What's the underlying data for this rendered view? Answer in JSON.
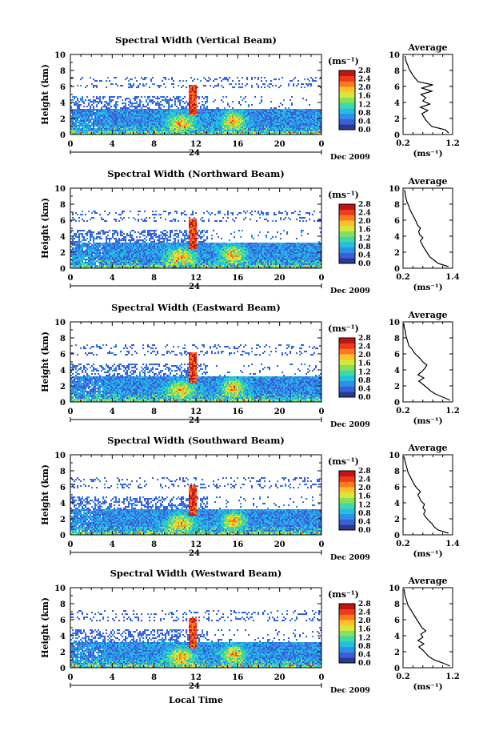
{
  "figure": {
    "bottom_xlabel": "Local Time",
    "date_label": "Dec 2009",
    "day_label": "24",
    "ylabel": "Height (km)",
    "colorbar_unit": "(ms⁻¹)",
    "profile_title": "Average",
    "profile_xlabel": "(ms⁻¹)"
  },
  "colorbar": {
    "ticks": [
      "2.8",
      "2.4",
      "2.0",
      "1.6",
      "1.2",
      "0.8",
      "0.4",
      "0.0"
    ],
    "range": [
      0.0,
      2.8
    ],
    "colors": [
      "#2a3b8f",
      "#3a5fd9",
      "#2f8fe8",
      "#21c0e0",
      "#3fd9a8",
      "#86e05a",
      "#d6e83a",
      "#ffc22a",
      "#ff7a1f",
      "#f03a1a",
      "#c01515"
    ]
  },
  "chart_data": [
    {
      "type": "heatmap",
      "title": "Spectral Width (Vertical Beam)",
      "xlabel": "Local Time",
      "ylabel": "Height (km)",
      "xlim": [
        0,
        24
      ],
      "ylim": [
        0,
        10
      ],
      "xticks": [
        "0",
        "4",
        "8",
        "12",
        "16",
        "20",
        "0"
      ],
      "yticks": [
        "0",
        "2",
        "4",
        "6",
        "8",
        "10"
      ],
      "profile": {
        "type": "line",
        "title": "Average",
        "xlabel": "(ms⁻¹)",
        "xlim": [
          0.2,
          1.2
        ],
        "xticks": [
          "0.2",
          "1.2"
        ],
        "ylim": [
          0,
          10
        ],
        "x": [
          1.12,
          1.05,
          0.78,
          0.72,
          0.66,
          0.62,
          0.58,
          0.7,
          0.55,
          0.74,
          0.6,
          0.66,
          0.56,
          0.78,
          0.58,
          0.8,
          0.5,
          0.45,
          0.4,
          0.36,
          0.32,
          0.3,
          0.27,
          0.25,
          0.24
        ],
        "y": [
          0.2,
          0.6,
          1.0,
          1.4,
          1.8,
          2.2,
          2.6,
          3.0,
          3.4,
          3.8,
          4.2,
          4.6,
          5.0,
          5.4,
          5.8,
          6.2,
          6.6,
          7.0,
          7.4,
          7.8,
          8.2,
          8.6,
          9.0,
          9.4,
          9.8
        ]
      }
    },
    {
      "type": "heatmap",
      "title": "Spectral Width (Northward Beam)",
      "xlabel": "Local Time",
      "ylabel": "Height (km)",
      "xlim": [
        0,
        24
      ],
      "ylim": [
        0,
        10
      ],
      "xticks": [
        "0",
        "4",
        "8",
        "12",
        "16",
        "20",
        "0"
      ],
      "yticks": [
        "0",
        "2",
        "4",
        "6",
        "8",
        "10"
      ],
      "profile": {
        "type": "line",
        "title": "Average",
        "xlabel": "(ms⁻¹)",
        "xlim": [
          0.2,
          1.4
        ],
        "xticks": [
          "0.2",
          "1.4"
        ],
        "ylim": [
          0,
          10
        ],
        "x": [
          1.3,
          1.05,
          0.95,
          0.85,
          0.8,
          0.75,
          0.7,
          0.66,
          0.62,
          0.68,
          0.6,
          0.58,
          0.62,
          0.55,
          0.52,
          0.48,
          0.44,
          0.4,
          0.36,
          0.34,
          0.3,
          0.28,
          0.26,
          0.25,
          0.24
        ],
        "y": [
          0.2,
          0.6,
          1.0,
          1.4,
          1.8,
          2.2,
          2.6,
          3.0,
          3.4,
          3.8,
          4.2,
          4.6,
          5.0,
          5.4,
          5.8,
          6.2,
          6.6,
          7.0,
          7.4,
          7.8,
          8.2,
          8.6,
          9.0,
          9.4,
          9.8
        ]
      }
    },
    {
      "type": "heatmap",
      "title": "Spectral Width (Eastward Beam)",
      "xlabel": "Local Time",
      "ylabel": "Height (km)",
      "xlim": [
        0,
        24
      ],
      "ylim": [
        0,
        10
      ],
      "xticks": [
        "0",
        "4",
        "8",
        "12",
        "16",
        "20",
        "0"
      ],
      "yticks": [
        "0",
        "2",
        "4",
        "6",
        "8",
        "10"
      ],
      "profile": {
        "type": "line",
        "title": "Average",
        "xlabel": "(ms⁻¹)",
        "xlim": [
          0.2,
          1.2
        ],
        "xticks": [
          "0.2",
          "1.2"
        ],
        "ylim": [
          0,
          10
        ],
        "x": [
          1.15,
          1.0,
          0.85,
          0.75,
          0.68,
          0.6,
          0.52,
          0.62,
          0.5,
          0.58,
          0.64,
          0.68,
          0.6,
          0.55,
          0.48,
          0.42,
          0.38,
          0.32,
          0.3,
          0.28,
          0.26,
          0.25,
          0.24,
          0.22,
          0.22
        ],
        "y": [
          0.2,
          0.6,
          1.0,
          1.4,
          1.8,
          2.2,
          2.6,
          3.0,
          3.4,
          3.8,
          4.2,
          4.6,
          5.0,
          5.4,
          5.8,
          6.2,
          6.6,
          7.0,
          7.4,
          7.8,
          8.2,
          8.6,
          9.0,
          9.4,
          9.8
        ]
      }
    },
    {
      "type": "heatmap",
      "title": "Spectral Width (Southward Beam)",
      "xlabel": "Local Time",
      "ylabel": "Height (km)",
      "xlim": [
        0,
        24
      ],
      "ylim": [
        0,
        10
      ],
      "xticks": [
        "0",
        "4",
        "8",
        "12",
        "16",
        "20",
        "0"
      ],
      "yticks": [
        "0",
        "2",
        "4",
        "6",
        "8",
        "10"
      ],
      "profile": {
        "type": "line",
        "title": "Average",
        "xlabel": "(ms⁻¹)",
        "xlim": [
          0.2,
          1.4
        ],
        "xticks": [
          "0.2",
          "1.4"
        ],
        "ylim": [
          0,
          10
        ],
        "x": [
          1.3,
          1.05,
          0.95,
          0.9,
          0.82,
          0.75,
          0.7,
          0.74,
          0.68,
          0.72,
          0.64,
          0.6,
          0.56,
          0.62,
          0.54,
          0.48,
          0.44,
          0.4,
          0.36,
          0.32,
          0.3,
          0.28,
          0.26,
          0.24,
          0.22
        ],
        "y": [
          0.2,
          0.6,
          1.0,
          1.4,
          1.8,
          2.2,
          2.6,
          3.0,
          3.4,
          3.8,
          4.2,
          4.6,
          5.0,
          5.4,
          5.8,
          6.2,
          6.6,
          7.0,
          7.4,
          7.8,
          8.2,
          8.6,
          9.0,
          9.4,
          9.8
        ]
      }
    },
    {
      "type": "heatmap",
      "title": "Spectral Width (Westward Beam)",
      "xlabel": "Local Time",
      "ylabel": "Height (km)",
      "xlim": [
        0,
        24
      ],
      "ylim": [
        0,
        10
      ],
      "xticks": [
        "0",
        "4",
        "8",
        "12",
        "16",
        "20",
        "0"
      ],
      "yticks": [
        "0",
        "2",
        "4",
        "6",
        "8",
        "10"
      ],
      "profile": {
        "type": "line",
        "title": "Average",
        "xlabel": "(ms⁻¹)",
        "xlim": [
          0.2,
          1.2
        ],
        "xticks": [
          "0.2",
          "1.2"
        ],
        "ylim": [
          0,
          10
        ],
        "x": [
          1.15,
          1.0,
          0.82,
          0.72,
          0.66,
          0.6,
          0.52,
          0.62,
          0.5,
          0.6,
          0.56,
          0.66,
          0.58,
          0.54,
          0.5,
          0.46,
          0.42,
          0.38,
          0.34,
          0.3,
          0.28,
          0.26,
          0.24,
          0.23,
          0.22
        ],
        "y": [
          0.2,
          0.6,
          1.0,
          1.4,
          1.8,
          2.2,
          2.6,
          3.0,
          3.4,
          3.8,
          4.2,
          4.6,
          5.0,
          5.4,
          5.8,
          6.2,
          6.6,
          7.0,
          7.4,
          7.8,
          8.2,
          8.6,
          9.0,
          9.4,
          9.8
        ]
      }
    }
  ]
}
